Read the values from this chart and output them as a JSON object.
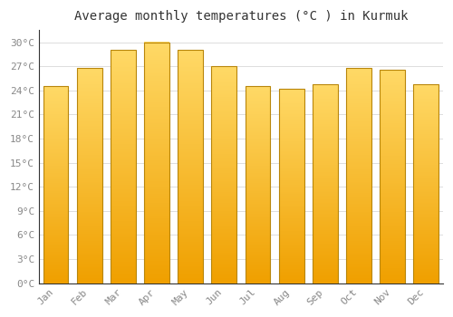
{
  "title": "Average monthly temperatures (°C ) in Kurmuk",
  "months": [
    "Jan",
    "Feb",
    "Mar",
    "Apr",
    "May",
    "Jun",
    "Jul",
    "Aug",
    "Sep",
    "Oct",
    "Nov",
    "Dec"
  ],
  "values": [
    24.5,
    26.8,
    29.0,
    30.0,
    29.0,
    27.0,
    24.5,
    24.2,
    24.8,
    26.8,
    26.6,
    24.8
  ],
  "bar_color_top": "#FFD966",
  "bar_color_bottom": "#F0A000",
  "bar_edge_color": "#B8860B",
  "background_color": "#FFFFFF",
  "grid_color": "#DDDDDD",
  "ylim": [
    0,
    31.5
  ],
  "yticks": [
    0,
    3,
    6,
    9,
    12,
    15,
    18,
    21,
    24,
    27,
    30
  ],
  "title_fontsize": 10,
  "tick_fontsize": 8,
  "font_family": "monospace"
}
